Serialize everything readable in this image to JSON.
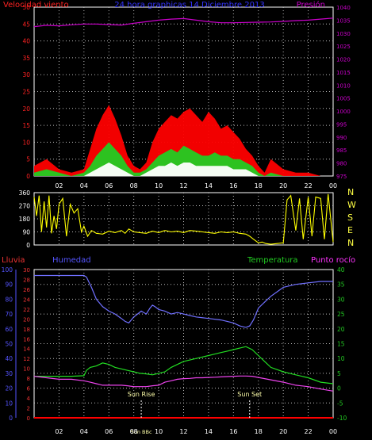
{
  "chart_data": [
    {
      "type": "line",
      "panel": "wind-pressure",
      "title": "24 hora graphicas 14 Diciembre 2013",
      "left_label": "Velocidad viento",
      "right_label": "Presión",
      "ylim_left": [
        0,
        50
      ],
      "ylim_right": [
        975,
        1040
      ],
      "yticks_left": [
        0,
        5,
        10,
        15,
        20,
        25,
        30,
        35,
        40,
        45,
        50
      ],
      "yticks_right": [
        975,
        980,
        985,
        990,
        995,
        1000,
        1005,
        1010,
        1015,
        1020,
        1025,
        1030,
        1035,
        1040
      ],
      "grid": true,
      "colors": {
        "gust": "#ff0000",
        "avg": "#22cc22",
        "min": "#ffffff",
        "pressure": "#cc00cc",
        "axis_left": "#ff2222",
        "axis_right": "#cc00cc",
        "title": "#3333ff"
      },
      "series": [
        {
          "name": "Presión",
          "axis": "right",
          "x": [
            0,
            1,
            2,
            3,
            4,
            5,
            6,
            7,
            8,
            9,
            10,
            11,
            12,
            13,
            14,
            15,
            16,
            17,
            18,
            19,
            20,
            21,
            22,
            23,
            24
          ],
          "values": [
            1032.5,
            1033,
            1032.8,
            1033.2,
            1033.5,
            1033.5,
            1033.3,
            1033.1,
            1033.8,
            1034.4,
            1035,
            1035.4,
            1035.6,
            1035,
            1034.4,
            1034,
            1034,
            1034.1,
            1034.2,
            1034.3,
            1034.5,
            1034.8,
            1035,
            1035.4,
            1035.8
          ]
        },
        {
          "name": "Racha",
          "axis": "left",
          "x": [
            0,
            1,
            2,
            3,
            4,
            4.5,
            5,
            5.5,
            6,
            6.5,
            7,
            7.5,
            8,
            8.5,
            9,
            9.5,
            10,
            10.5,
            11,
            11.5,
            12,
            12.5,
            13,
            13.5,
            14,
            14.5,
            15,
            15.5,
            16,
            16.5,
            17,
            17.5,
            18,
            18.5,
            19,
            20,
            21,
            22,
            23,
            24
          ],
          "values": [
            3,
            5,
            2,
            1,
            2,
            8,
            14,
            18,
            21,
            17,
            12,
            6,
            3,
            2,
            4,
            10,
            14,
            16,
            18,
            17,
            19,
            20,
            18,
            16,
            19,
            17,
            14,
            15,
            13,
            11,
            8,
            6,
            3,
            1,
            5,
            2,
            1,
            1,
            0,
            0
          ]
        },
        {
          "name": "Promedio",
          "axis": "left",
          "x": [
            0,
            1,
            2,
            3,
            4,
            4.5,
            5,
            5.5,
            6,
            6.5,
            7,
            7.5,
            8,
            8.5,
            9,
            9.5,
            10,
            10.5,
            11,
            11.5,
            12,
            12.5,
            13,
            13.5,
            14,
            14.5,
            15,
            15.5,
            16,
            16.5,
            17,
            17.5,
            18,
            18.5,
            19,
            20,
            21,
            22,
            23,
            24
          ],
          "values": [
            1,
            2,
            1,
            0,
            1,
            3,
            6,
            8,
            10,
            8,
            6,
            3,
            1,
            1,
            2,
            4,
            6,
            7,
            8,
            7,
            9,
            8,
            7,
            6,
            6,
            7,
            6,
            6,
            5,
            5,
            4,
            3,
            1,
            0,
            1,
            0,
            0,
            0,
            0,
            0
          ]
        },
        {
          "name": "Mínimo",
          "axis": "left",
          "x": [
            0,
            1,
            2,
            3,
            4,
            4.5,
            5,
            5.5,
            6,
            6.5,
            7,
            7.5,
            8,
            8.5,
            9,
            9.5,
            10,
            10.5,
            11,
            11.5,
            12,
            12.5,
            13,
            13.5,
            14,
            14.5,
            15,
            15.5,
            16,
            16.5,
            17,
            17.5,
            18,
            18.5,
            19,
            20,
            21,
            22,
            23,
            24
          ],
          "values": [
            0,
            0,
            0,
            0,
            0,
            1,
            2,
            3,
            4,
            3,
            2,
            1,
            0,
            0,
            1,
            2,
            3,
            3,
            4,
            3,
            4,
            4,
            3,
            3,
            3,
            3,
            3,
            3,
            2,
            2,
            2,
            1,
            0,
            0,
            0,
            0,
            0,
            0,
            0,
            0
          ]
        }
      ]
    },
    {
      "type": "line",
      "panel": "wind-direction",
      "ylim": [
        0,
        360
      ],
      "yticks": [
        0,
        90,
        180,
        270,
        360
      ],
      "compass": [
        "N",
        "W",
        "S",
        "E",
        "N"
      ],
      "color": "#ffff00",
      "grid": true,
      "series": [
        {
          "name": "Dirección",
          "x": [
            0,
            0.2,
            0.4,
            0.6,
            0.8,
            1,
            1.2,
            1.4,
            1.6,
            1.8,
            2,
            2.3,
            2.6,
            2.9,
            3.2,
            3.5,
            3.8,
            4,
            4.3,
            4.6,
            5,
            5.5,
            6,
            6.5,
            7,
            7.3,
            7.6,
            8,
            8.5,
            9,
            9.5,
            10,
            10.5,
            11,
            11.5,
            12,
            12.5,
            13,
            13.5,
            14,
            14.5,
            15,
            15.5,
            16,
            16.5,
            17,
            17.3,
            17.6,
            18,
            18.3,
            18.6,
            19,
            19.5,
            20,
            20.3,
            20.6,
            21,
            21.3,
            21.6,
            22,
            22.3,
            22.6,
            23,
            23.3,
            23.6,
            24
          ],
          "values": [
            330,
            200,
            340,
            90,
            300,
            120,
            340,
            80,
            200,
            110,
            280,
            320,
            60,
            280,
            220,
            250,
            90,
            130,
            60,
            100,
            80,
            75,
            95,
            85,
            100,
            80,
            110,
            90,
            85,
            80,
            95,
            85,
            100,
            90,
            95,
            85,
            100,
            95,
            90,
            85,
            80,
            90,
            85,
            90,
            80,
            75,
            60,
            40,
            15,
            20,
            10,
            5,
            10,
            15,
            310,
            340,
            100,
            320,
            40,
            330,
            60,
            330,
            320,
            40,
            350,
            20
          ]
        }
      ]
    },
    {
      "type": "line",
      "panel": "rain-humidity-temperature",
      "left_outer_label": "Lluvia",
      "left_inner_label": "Humedad",
      "right_inner_label": "Temperatura",
      "right_outer_label": "Punto rocío",
      "ylim_left_outer": [
        0,
        100
      ],
      "ylim_left_inner": [
        0,
        30
      ],
      "ylim_right": [
        -10,
        40
      ],
      "yticks_left_outer": [
        0,
        10,
        20,
        30,
        40,
        50,
        60,
        70,
        80,
        90,
        100
      ],
      "yticks_left_inner": [
        0,
        2,
        4,
        6,
        8,
        10,
        12,
        14,
        16,
        18,
        20,
        22,
        24,
        26,
        28,
        30
      ],
      "yticks_right": [
        -10,
        -5,
        0,
        5,
        10,
        15,
        20,
        25,
        30,
        35,
        40
      ],
      "x_ticks": [
        "02",
        "04",
        "06",
        "08",
        "10",
        "12",
        "14",
        "16",
        "18",
        "20",
        "22",
        "00"
      ],
      "annotations": [
        {
          "label": "Sun Rise",
          "x": 8.6
        },
        {
          "label": "Sun Set",
          "x": 17.3
        },
        {
          "label": "Sun BBc",
          "x": 8.6
        }
      ],
      "colors": {
        "humidity": "#7070ff",
        "temperature": "#22dd22",
        "dewpoint": "#ee44ee",
        "rain": "#ff0000",
        "axis_left_outer": "#5555ff",
        "axis_left_inner": "#ee3333",
        "axis_right": "#22cc22",
        "dewpoint_label": "#ff33ff"
      },
      "series": [
        {
          "name": "Humedad",
          "axis": "left_outer",
          "x": [
            0,
            1,
            2,
            3,
            4,
            4.2,
            4.6,
            5,
            5.5,
            6,
            6.5,
            7,
            7.3,
            7.6,
            8,
            8.3,
            8.6,
            9,
            9.3,
            9.5,
            9.7,
            10,
            10.5,
            11,
            11.5,
            12,
            12.5,
            13,
            14,
            15,
            16,
            16.5,
            17,
            17.3,
            17.6,
            18,
            18.5,
            19,
            19.5,
            20,
            20.5,
            21,
            22,
            23,
            24
          ],
          "values": [
            96,
            96,
            96,
            96,
            96,
            95,
            88,
            80,
            75,
            72,
            70,
            67,
            65,
            64,
            68,
            70,
            72,
            70,
            74,
            76,
            75,
            73,
            72,
            70,
            71,
            70,
            69,
            68,
            67,
            66,
            64,
            62,
            61,
            62,
            66,
            74,
            78,
            82,
            85,
            88,
            89,
            90,
            91,
            92,
            92
          ]
        },
        {
          "name": "Temperatura",
          "axis": "right",
          "x": [
            0,
            1,
            2,
            3,
            4,
            4.2,
            4.5,
            5,
            5.5,
            6,
            6.5,
            7,
            7.5,
            8,
            8.5,
            9,
            9.5,
            10,
            10.5,
            11,
            11.5,
            12,
            12.5,
            13,
            13.5,
            14,
            14.5,
            15,
            15.5,
            16,
            16.5,
            17,
            17.5,
            18,
            18.5,
            19,
            20,
            21,
            22,
            23,
            24
          ],
          "values": [
            4,
            4,
            4,
            4,
            4.2,
            6,
            7,
            7.5,
            8.5,
            8,
            7,
            6.5,
            6,
            5.5,
            5,
            4.8,
            4.5,
            5,
            5.5,
            7,
            8,
            9,
            9.5,
            10,
            10.5,
            11,
            11.5,
            12,
            12.5,
            13,
            13.5,
            14,
            13,
            11,
            9,
            7,
            5.5,
            4.5,
            3.5,
            2,
            1.5
          ]
        },
        {
          "name": "Punto rocío",
          "axis": "right",
          "x": [
            0,
            1,
            2,
            3,
            4,
            4.5,
            5,
            5.5,
            6,
            6.5,
            7,
            7.5,
            8,
            8.5,
            9,
            9.5,
            10,
            10.5,
            11,
            11.5,
            12,
            12.5,
            13,
            13.5,
            14,
            14.5,
            15,
            15.5,
            16,
            16.5,
            17,
            17.5,
            18,
            18.5,
            19,
            20,
            21,
            22,
            23,
            24
          ],
          "values": [
            4,
            3.5,
            3,
            3,
            2.5,
            2,
            1.5,
            1,
            1,
            1,
            1,
            0.8,
            0.5,
            0.5,
            0.5,
            0.8,
            1,
            2,
            2.5,
            3,
            3.2,
            3.3,
            3.5,
            3.5,
            3.6,
            3.7,
            3.8,
            3.9,
            4,
            4.1,
            4.1,
            4,
            3.6,
            3.2,
            2.8,
            2,
            1,
            0.5,
            -0.3,
            -1
          ]
        },
        {
          "name": "Lluvia",
          "axis": "left_outer",
          "x": [
            0,
            24
          ],
          "values": [
            0,
            0
          ]
        }
      ]
    }
  ]
}
